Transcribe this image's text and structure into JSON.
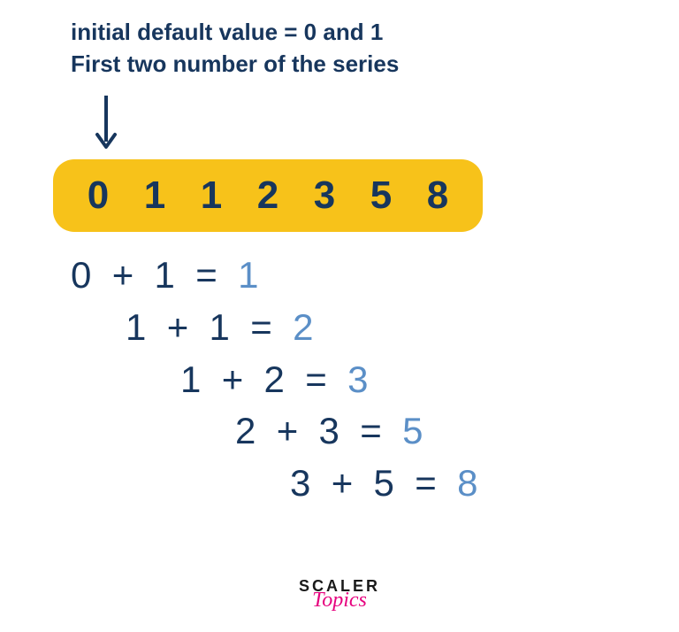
{
  "header": {
    "line1": "initial default value = 0 and 1",
    "line2": "First two number of the series"
  },
  "colors": {
    "text_dark": "#17365d",
    "highlight_bg": "#f7c21a",
    "result_blue": "#5b8fc7",
    "logo_black": "#1a1a1a",
    "logo_pink": "#e6007e",
    "background": "#ffffff"
  },
  "arrow": {
    "stroke": "#17365d",
    "width": 4,
    "height": 62
  },
  "series": {
    "values": [
      "0",
      "1",
      "1",
      "2",
      "3",
      "5",
      "8"
    ],
    "bold_indices": [
      0,
      1
    ],
    "box_color": "#f7c21a",
    "border_radius": 24,
    "font_size": 44
  },
  "calculations": {
    "font_size": 42,
    "indent_step": 62,
    "rows": [
      {
        "a": "0",
        "op": "+",
        "b": "1",
        "eq": "=",
        "r": "1",
        "indent": 0
      },
      {
        "a": "1",
        "op": "+",
        "b": "1",
        "eq": "=",
        "r": "2",
        "indent": 1
      },
      {
        "a": "1",
        "op": "+",
        "b": "2",
        "eq": "=",
        "r": "3",
        "indent": 2
      },
      {
        "a": "2",
        "op": "+",
        "b": "3",
        "eq": "=",
        "r": "5",
        "indent": 3
      },
      {
        "a": "3",
        "op": "+",
        "b": "5",
        "eq": "=",
        "r": "8",
        "indent": 4
      }
    ]
  },
  "logo": {
    "top": "SCALER",
    "bottom": "Topics"
  }
}
